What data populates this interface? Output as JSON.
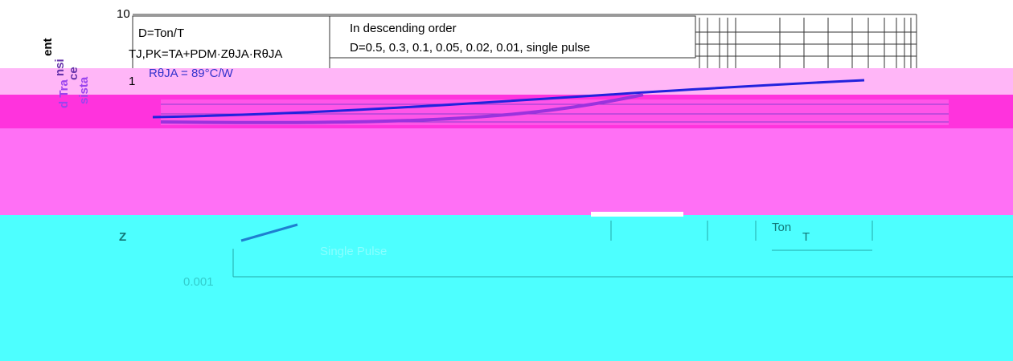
{
  "axis": {
    "top_label": "10",
    "mid_label": "1",
    "bottom_label": "0.001",
    "title_fragments": [
      "ent",
      "nsi",
      "d Tra",
      "ce",
      "sista"
    ],
    "symbol": "Z"
  },
  "note_box": {
    "line1": "D=Ton/T",
    "line2": "TJ,PK=TA+PDM·ZθJA·RθJA",
    "line3": "RθJA = 89°C/W"
  },
  "legend_box": {
    "heading": "In descending order",
    "list": "D=0.5, 0.3, 0.1, 0.05, 0.02, 0.01, single pulse"
  },
  "annotations": {
    "single_pulse": "Single Pulse",
    "ton": "Ton",
    "period": "T"
  }
}
